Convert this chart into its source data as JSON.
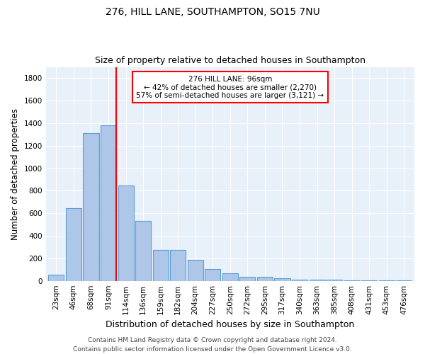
{
  "title1": "276, HILL LANE, SOUTHAMPTON, SO15 7NU",
  "title2": "Size of property relative to detached houses in Southampton",
  "xlabel": "Distribution of detached houses by size in Southampton",
  "ylabel": "Number of detached properties",
  "categories": [
    "23sqm",
    "46sqm",
    "68sqm",
    "91sqm",
    "114sqm",
    "136sqm",
    "159sqm",
    "182sqm",
    "204sqm",
    "227sqm",
    "250sqm",
    "272sqm",
    "295sqm",
    "317sqm",
    "340sqm",
    "363sqm",
    "385sqm",
    "408sqm",
    "431sqm",
    "453sqm",
    "476sqm"
  ],
  "values": [
    55,
    648,
    1310,
    1380,
    845,
    530,
    275,
    275,
    185,
    105,
    65,
    37,
    35,
    22,
    10,
    10,
    10,
    2,
    2,
    2,
    2
  ],
  "bar_color": "#aec6e8",
  "bar_edge_color": "#5a9fd4",
  "bg_color": "#e8f0fa",
  "grid_color": "#ffffff",
  "vline_color": "red",
  "annotation_text": "276 HILL LANE: 96sqm\n← 42% of detached houses are smaller (2,270)\n57% of semi-detached houses are larger (3,121) →",
  "annotation_box_color": "white",
  "annotation_box_edge": "red",
  "ylim": [
    0,
    1900
  ],
  "yticks": [
    0,
    200,
    400,
    600,
    800,
    1000,
    1200,
    1400,
    1600,
    1800
  ],
  "footer1": "Contains HM Land Registry data © Crown copyright and database right 2024.",
  "footer2": "Contains public sector information licensed under the Open Government Licence v3.0.",
  "title1_fontsize": 10,
  "title2_fontsize": 9,
  "xlabel_fontsize": 9,
  "ylabel_fontsize": 8.5,
  "tick_fontsize": 7.5,
  "footer_fontsize": 6.5
}
